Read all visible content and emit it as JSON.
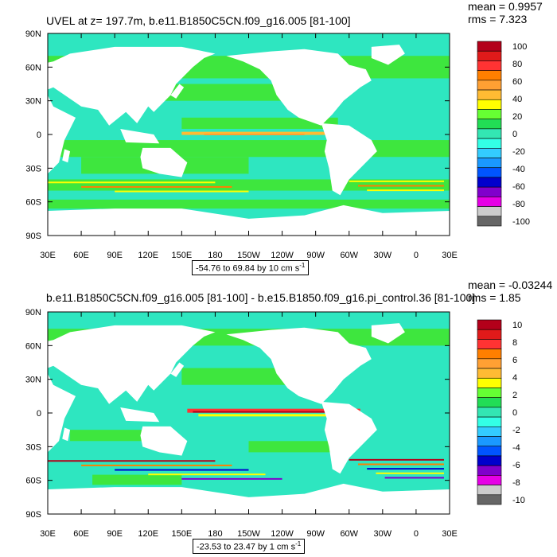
{
  "panels": [
    {
      "title": "UVEL at z= 197.7m, b.e11.B1850C5CN.f09_g16.005 [81-100]",
      "mean": "mean = 0.9957",
      "rms": "rms = 7.323",
      "range_note": "-54.76 to 69.84 by 10 cm s",
      "range_unit_exp": "-1",
      "colorbar_labels": [
        "100",
        "80",
        "60",
        "40",
        "20",
        "0",
        "-20",
        "-40",
        "-60",
        "-80",
        "-100"
      ]
    },
    {
      "title": "b.e11.B1850C5CN.f09_g16.005 [81-100] - b.e15.B1850.f09_g16.pi_control.36 [81-100]",
      "mean": "mean = -0.03244",
      "rms": "rms = 1.85",
      "range_note": "-23.53 to 23.47 by 1 cm s",
      "range_unit_exp": "-1",
      "colorbar_labels": [
        "10",
        "8",
        "6",
        "4",
        "2",
        "0",
        "-2",
        "-4",
        "-6",
        "-8",
        "-10"
      ]
    }
  ],
  "axes": {
    "y_labels": [
      "90N",
      "60N",
      "30N",
      "0",
      "30S",
      "60S",
      "90S"
    ],
    "x_labels": [
      "30E",
      "60E",
      "90E",
      "120E",
      "150E",
      "180",
      "150W",
      "120W",
      "90W",
      "60W",
      "30W",
      "0",
      "30E"
    ]
  },
  "colors": {
    "ocean_base": "#2ee6c0",
    "ocean_green": "#3ee63e",
    "land": "#ffffff",
    "colorbar": [
      "#b3001a",
      "#e01a1a",
      "#ff3333",
      "#ff7f00",
      "#ffa033",
      "#ffbb33",
      "#ffff00",
      "#66ff33",
      "#22dd55",
      "#33e6b3",
      "#33ffe6",
      "#33ccff",
      "#1a99ff",
      "#0055ff",
      "#0000cc",
      "#8000cc",
      "#e600e6",
      "#cccccc",
      "#666666"
    ]
  }
}
